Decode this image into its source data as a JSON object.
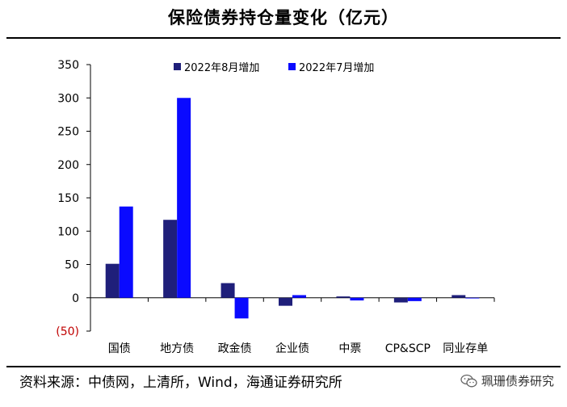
{
  "title": "保险债券持仓量变化（亿元）",
  "footer": "资料来源：中债网，上清所，Wind，海通证券研究所",
  "watermark": "珮珊债券研究",
  "chart_data": {
    "type": "bar",
    "categories": [
      "国债",
      "地方债",
      "政金债",
      "企业债",
      "中票",
      "CP&SCP",
      "同业存单"
    ],
    "series": [
      {
        "name": "2022年8月增加",
        "color": "#1f1f7a",
        "values": [
          51,
          117,
          22,
          -12,
          2,
          -7,
          4
        ]
      },
      {
        "name": "2022年7月增加",
        "color": "#0a0aff",
        "values": [
          137,
          300,
          -31,
          4,
          -4,
          -5,
          -1
        ]
      }
    ],
    "ylim": [
      -50,
      350
    ],
    "yticks": [
      -50,
      0,
      50,
      100,
      150,
      200,
      250,
      300,
      350
    ],
    "yticklabels": [
      "(50)",
      "0",
      "50",
      "100",
      "150",
      "200",
      "250",
      "300",
      "350"
    ],
    "negative_tick_color": "#c00000",
    "legend_position": "top",
    "grid": false
  }
}
